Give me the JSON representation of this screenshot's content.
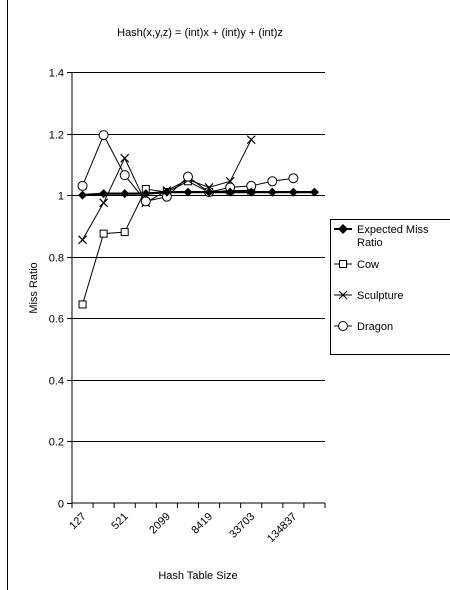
{
  "chart_data": {
    "type": "line",
    "title": "Hash(x,y,z) = (int)x + (int)y + (int)z",
    "xlabel": "Hash Table Size",
    "ylabel": "Miss Ratio",
    "ylim": [
      0,
      1.4
    ],
    "y_ticks": [
      "0",
      "0.2",
      "0.4",
      "0.6",
      "0.8",
      "1",
      "1.2",
      "1.4"
    ],
    "x_tick_labels": [
      "127",
      "521",
      "2099",
      "8419",
      "33703",
      "134837"
    ],
    "grid": "horizontal",
    "legend_position": "right",
    "series": [
      {
        "name": "Expected Miss Ratio",
        "marker": "filled-diamond",
        "values": [
          1.0,
          1.005,
          1.005,
          1.005,
          1.01,
          1.01,
          1.01,
          1.01,
          1.01,
          1.01,
          1.01,
          1.01
        ]
      },
      {
        "name": "Cow",
        "marker": "open-square",
        "values": [
          0.645,
          0.875,
          0.88,
          1.02,
          1.01,
          1.045,
          1.01,
          1.015,
          1.015,
          null,
          null,
          null
        ]
      },
      {
        "name": "Sculpture",
        "marker": "cross",
        "values": [
          0.855,
          0.975,
          1.12,
          0.975,
          1.015,
          1.05,
          1.025,
          1.045,
          1.18,
          null,
          null,
          null
        ]
      },
      {
        "name": "Dragon",
        "marker": "open-circle",
        "values": [
          1.03,
          1.195,
          1.065,
          0.98,
          0.995,
          1.06,
          1.01,
          1.025,
          1.03,
          1.045,
          1.055,
          null
        ]
      }
    ]
  }
}
